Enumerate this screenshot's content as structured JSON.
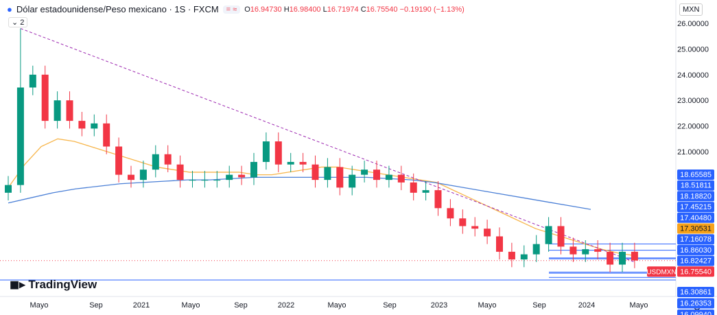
{
  "header": {
    "title": "Dólar estadounidense/Peso mexicano · 1S · FXCM",
    "open": "16.94730",
    "high": "16.98400",
    "low": "16.71974",
    "close": "16.75540",
    "change": "−0.19190 (−1.13%)",
    "indicators_count": "2",
    "currency": "MXN"
  },
  "logo": "TradingView",
  "chart_data": {
    "type": "candlestick",
    "symbol": "USDMXN",
    "interval": "1S",
    "y_ticks": [
      26,
      25,
      24,
      23,
      22,
      21
    ],
    "ylim": [
      16.0,
      26.3
    ],
    "x_ticks": [
      "Mayo",
      "Sep",
      "2021",
      "Mayo",
      "Sep",
      "2022",
      "Mayo",
      "Sep",
      "2023",
      "Mayo",
      "Sep",
      "2024",
      "Mayo"
    ],
    "months": [
      "2020-02",
      "2020-03",
      "2020-04",
      "2020-05",
      "2020-06",
      "2020-07",
      "2020-08",
      "2020-09",
      "2020-10",
      "2020-11",
      "2020-12",
      "2021-01",
      "2021-02",
      "2021-03",
      "2021-04",
      "2021-05",
      "2021-06",
      "2021-07",
      "2021-08",
      "2021-09",
      "2021-10",
      "2021-11",
      "2021-12",
      "2022-01",
      "2022-02",
      "2022-03",
      "2022-04",
      "2022-05",
      "2022-06",
      "2022-07",
      "2022-08",
      "2022-09",
      "2022-10",
      "2022-11",
      "2022-12",
      "2023-01",
      "2023-02",
      "2023-03",
      "2023-04",
      "2023-05",
      "2023-06",
      "2023-07",
      "2023-08",
      "2023-09",
      "2023-10",
      "2023-11",
      "2023-12",
      "2024-01",
      "2024-02",
      "2024-03",
      "2024-04",
      "2024-05"
    ],
    "close": [
      19.7,
      23.5,
      24.0,
      22.2,
      23.0,
      22.2,
      21.9,
      22.1,
      21.2,
      20.1,
      19.9,
      20.3,
      20.9,
      20.5,
      19.9,
      19.9,
      19.9,
      19.9,
      20.1,
      20.0,
      20.6,
      21.4,
      20.5,
      20.6,
      20.5,
      19.9,
      20.4,
      19.6,
      20.1,
      20.3,
      19.9,
      20.1,
      19.8,
      19.4,
      19.5,
      18.8,
      18.4,
      18.1,
      18.0,
      17.7,
      17.1,
      16.8,
      17.0,
      17.4,
      18.1,
      17.3,
      17.0,
      17.2,
      17.1,
      16.6,
      17.1,
      16.76
    ],
    "open_first": 19.4,
    "ma_fast": [
      19.6,
      20.5,
      21.2,
      21.5,
      21.4,
      21.2,
      21.0,
      20.8,
      20.6,
      20.4,
      20.3,
      20.2,
      20.2,
      20.2,
      20.2,
      20.1,
      20.1,
      20.2,
      20.3,
      20.4,
      20.4,
      20.3,
      20.2,
      20.1,
      20.0,
      19.9,
      19.8,
      19.5,
      19.2,
      18.9,
      18.6,
      18.3,
      18.0,
      17.8,
      17.6,
      17.4,
      17.2,
      17.05,
      16.95
    ],
    "ma_slow": [
      19.0,
      19.2,
      19.4,
      19.55,
      19.65,
      19.75,
      19.8,
      19.85,
      19.9,
      19.9,
      19.95,
      20.0,
      20.0,
      20.0,
      20.0,
      20.0,
      20.0,
      19.95,
      19.9,
      19.8,
      19.65,
      19.5,
      19.35,
      19.2,
      19.05,
      18.9,
      18.75
    ],
    "price_labels": [
      {
        "value": "18.65585",
        "color": "#2962ff"
      },
      {
        "value": "18.51811",
        "color": "#2962ff"
      },
      {
        "value": "18.18820",
        "color": "#2962ff"
      },
      {
        "value": "17.45215",
        "color": "#2962ff"
      },
      {
        "value": "17.40480",
        "color": "#2962ff"
      },
      {
        "value": "17.30531",
        "color": "#f7a21b"
      },
      {
        "value": "17.16078",
        "color": "#2962ff"
      },
      {
        "value": "16.86030",
        "color": "#2962ff"
      },
      {
        "value": "16.82427",
        "color": "#2962ff"
      },
      {
        "value": "16.75540",
        "color": "#f23645"
      },
      {
        "value": "16.30861",
        "color": "#2962ff"
      },
      {
        "value": "16.26353",
        "color": "#2962ff"
      },
      {
        "value": "16.09940",
        "color": "#2962ff"
      }
    ],
    "levels": [
      17.4048,
      17.16078,
      16.8603,
      16.82427,
      16.30861,
      16.26353,
      16.0994
    ],
    "trendline": {
      "from": [
        "2020-03",
        25.8
      ],
      "to": [
        "2024-05",
        16.7
      ]
    },
    "colors": {
      "up": "#089981",
      "down": "#f23645",
      "ma_fast": "#f7b54a",
      "ma_slow": "#4a7fd6",
      "trend": "#9c27b0",
      "level": "#2962ff"
    }
  }
}
